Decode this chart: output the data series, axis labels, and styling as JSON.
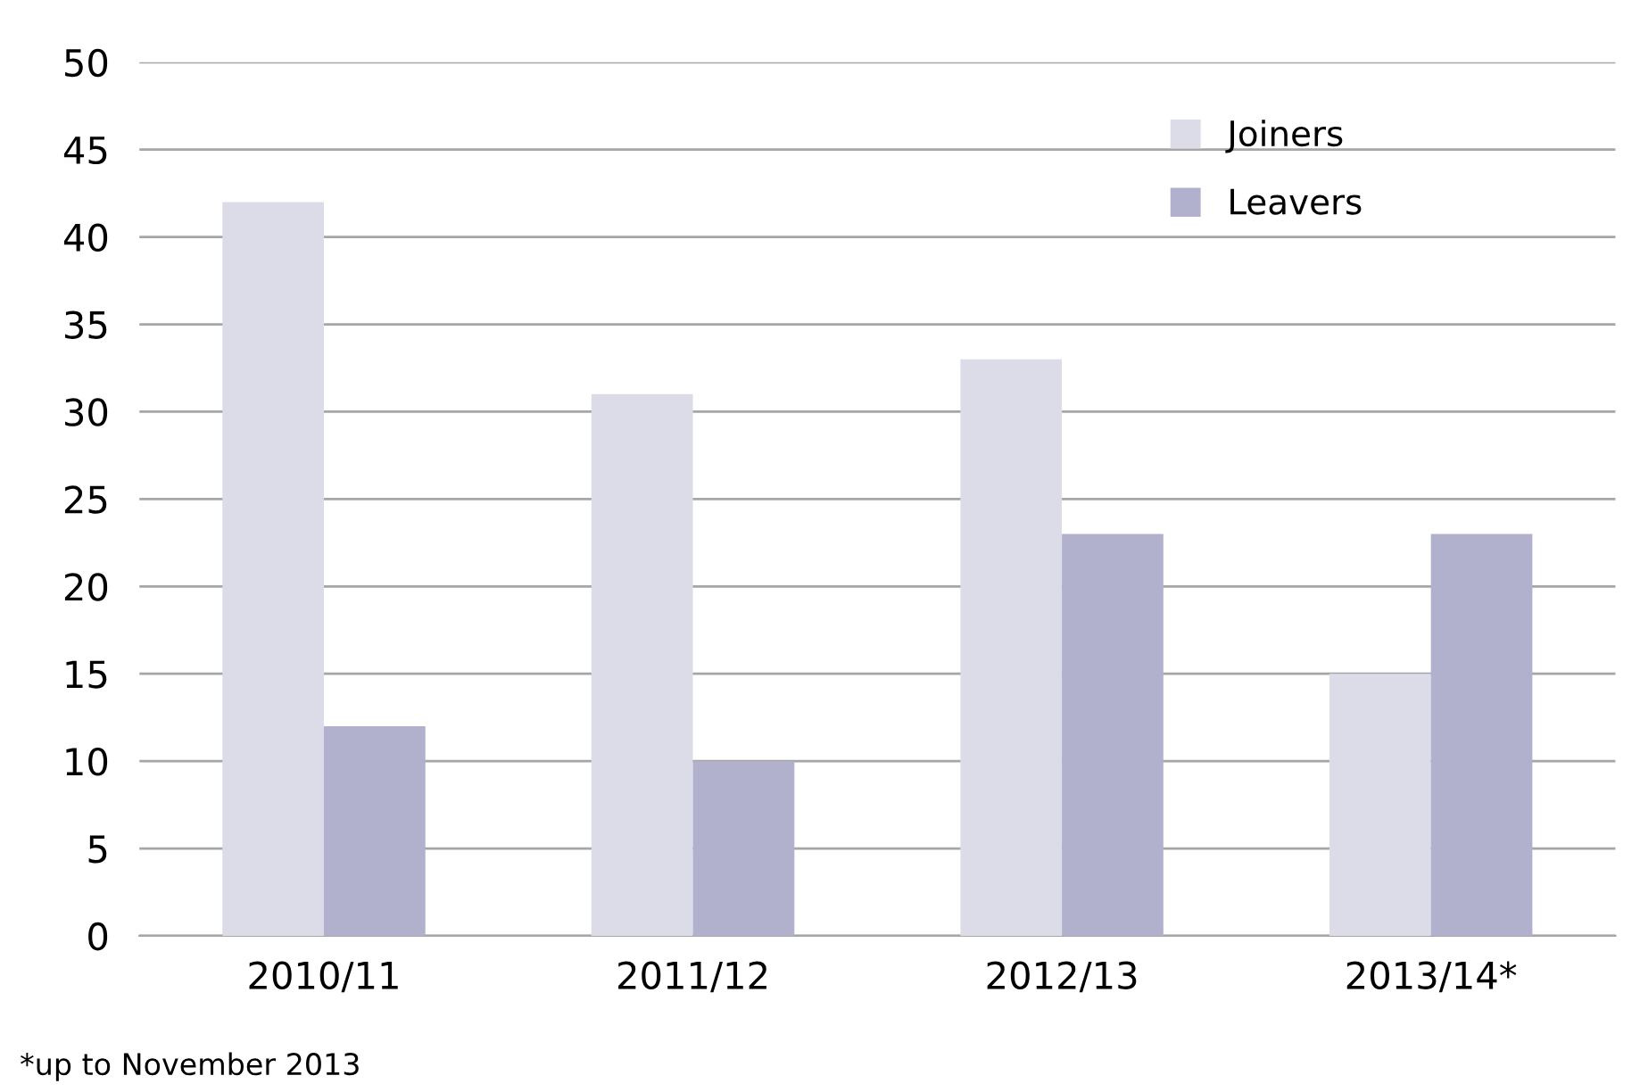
{
  "chart_data": {
    "type": "bar",
    "categories": [
      "2010/11",
      "2011/12",
      "2012/13",
      "2013/14*"
    ],
    "series": [
      {
        "name": "Joiners",
        "color": "#dcdce8",
        "values": [
          42,
          31,
          33,
          15
        ]
      },
      {
        "name": "Leavers",
        "color": "#b1b1cd",
        "values": [
          12,
          10,
          23,
          23
        ]
      }
    ],
    "ylim": [
      0,
      50
    ],
    "yticks": [
      0,
      5,
      10,
      15,
      20,
      25,
      30,
      35,
      40,
      45,
      50
    ],
    "grid": "y",
    "legend": "top right",
    "annotations": [
      "*up to November 2013"
    ]
  }
}
